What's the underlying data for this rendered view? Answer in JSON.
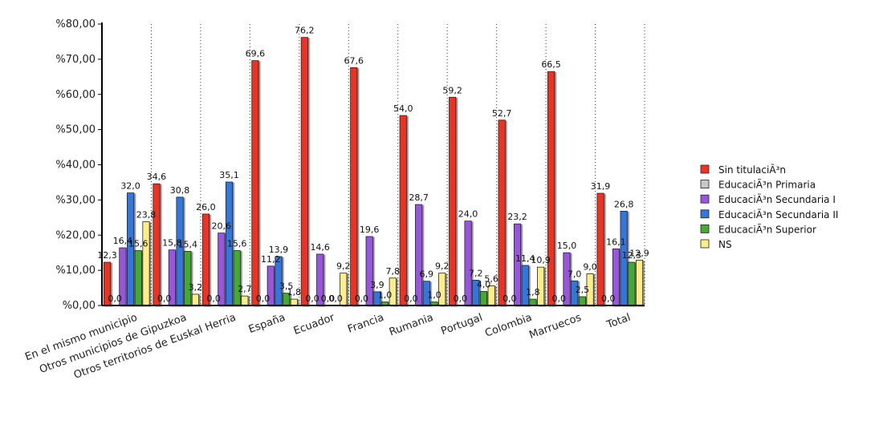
{
  "chart_data": {
    "type": "bar",
    "title": "",
    "xlabel": "",
    "ylabel": "",
    "ylim": [
      0,
      80
    ],
    "yticks": [
      0,
      10,
      20,
      30,
      40,
      50,
      60,
      70,
      80
    ],
    "ytick_labels": [
      "%0,00",
      "%10,00",
      "%20,00",
      "%30,00",
      "%40,00",
      "%50,00",
      "%60,00",
      "%70,00",
      "%80,00"
    ],
    "grid": {
      "vertical_dotted": true,
      "horizontal": false
    },
    "legend_position": "right",
    "categories": [
      "En el mismo municipio",
      "Otros municipios de Gipuzkoa",
      "Otros territorios de Euskal Herria",
      "España",
      "Ecuador",
      "Francia",
      "Rumania",
      "Portugal",
      "Colombia",
      "Marruecos",
      "Total"
    ],
    "series": [
      {
        "name": "Sin titulaciÃ³n",
        "color": "#ee3322",
        "values": [
          12.3,
          34.6,
          26.0,
          69.6,
          76.2,
          67.6,
          54.0,
          59.2,
          52.7,
          66.5,
          31.9
        ],
        "labels": [
          "12,3",
          "34,6",
          "26,0",
          "69,6",
          "76,2",
          "67,6",
          "54,0",
          "59,2",
          "52,7",
          "66,5",
          "31,9"
        ]
      },
      {
        "name": "EducaciÃ³n Primaria",
        "color": "#c8c8c8",
        "values": [
          0,
          0,
          0,
          0,
          0,
          0,
          0,
          0,
          0,
          0,
          0
        ],
        "labels": [
          "0,0",
          "0,0",
          "0,0",
          "0,0",
          "0,0",
          "0,0",
          "0,0",
          "0,0",
          "0,0",
          "0,0",
          "0,0"
        ]
      },
      {
        "name": "EducaciÃ³n Secundaria I",
        "color": "#9955dd",
        "values": [
          16.4,
          15.8,
          20.6,
          11.2,
          14.6,
          19.6,
          28.7,
          24.0,
          23.2,
          15.0,
          16.1
        ],
        "labels": [
          "16,4",
          "15,8",
          "20,6",
          "11,2",
          "14,6",
          "19,6",
          "28,7",
          "24,0",
          "23,2",
          "15,0",
          "16,1"
        ]
      },
      {
        "name": "EducaciÃ³n Secundaria II",
        "color": "#3377dd",
        "values": [
          32.0,
          30.8,
          35.1,
          13.9,
          0.0,
          3.9,
          6.9,
          7.2,
          11.4,
          7.0,
          26.8
        ],
        "labels": [
          "32,0",
          "30,8",
          "35,1",
          "13,9",
          "0,0",
          "3,9",
          "6,9",
          "7,2",
          "11,4",
          "7,0",
          "26,8"
        ]
      },
      {
        "name": "EducaciÃ³n Superior",
        "color": "#44aa33",
        "values": [
          15.6,
          15.4,
          15.6,
          3.5,
          0.0,
          1.0,
          1.0,
          4.0,
          1.8,
          2.5,
          12.3
        ],
        "labels": [
          "15,6",
          "15,4",
          "15,6",
          "3,5",
          "0,0",
          "1,0",
          "1,0",
          "4,0",
          "1,8",
          "2,5",
          "12,3"
        ]
      },
      {
        "name": "NS",
        "color": "#ffee88",
        "values": [
          23.8,
          3.2,
          2.7,
          1.8,
          9.2,
          7.8,
          9.2,
          5.6,
          10.9,
          9.0,
          12.9
        ],
        "labels": [
          "23,8",
          "3,2",
          "2,7",
          "1,8",
          "9,2",
          "7,8",
          "9,2",
          "5,6",
          "10,9",
          "9,0",
          "12,9"
        ]
      }
    ]
  }
}
